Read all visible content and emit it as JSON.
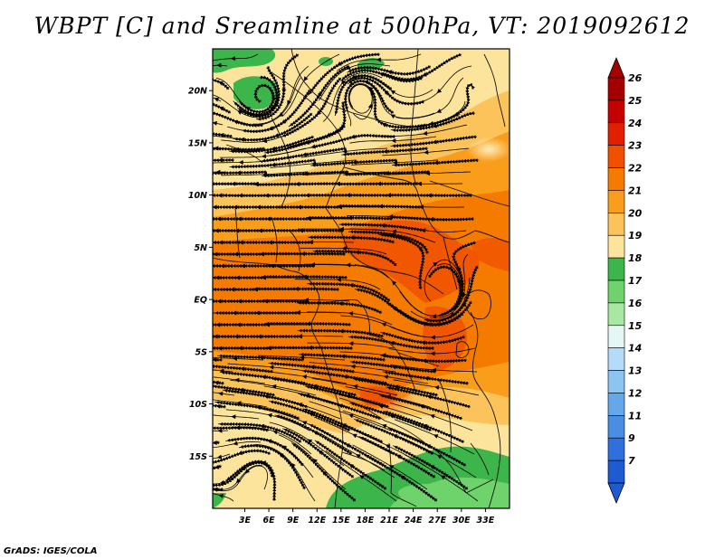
{
  "title": "WBPT [C] and Sreamline at 500hPa, VT: 2019092612",
  "credit": "GrADS: IGES/COLA",
  "map": {
    "lon_range": [
      -1,
      36
    ],
    "lat_range": [
      -20,
      24
    ],
    "lon_labels": [
      {
        "lon": 3,
        "text": "3E"
      },
      {
        "lon": 6,
        "text": "6E"
      },
      {
        "lon": 9,
        "text": "9E"
      },
      {
        "lon": 12,
        "text": "12E"
      },
      {
        "lon": 15,
        "text": "15E"
      },
      {
        "lon": 18,
        "text": "18E"
      },
      {
        "lon": 21,
        "text": "21E"
      },
      {
        "lon": 24,
        "text": "24E"
      },
      {
        "lon": 27,
        "text": "27E"
      },
      {
        "lon": 30,
        "text": "30E"
      },
      {
        "lon": 33,
        "text": "33E"
      }
    ],
    "lat_labels": [
      {
        "lat": 20,
        "text": "20N"
      },
      {
        "lat": 15,
        "text": "15N"
      },
      {
        "lat": 10,
        "text": "10N"
      },
      {
        "lat": 5,
        "text": "5N"
      },
      {
        "lat": 0,
        "text": "EQ"
      },
      {
        "lat": -5,
        "text": "5S"
      },
      {
        "lat": -10,
        "text": "10S"
      },
      {
        "lat": -15,
        "text": "15S"
      }
    ]
  },
  "colorbar": {
    "levels": [
      {
        "label": "26",
        "color": "#a50000"
      },
      {
        "label": "25",
        "color": "#c40000"
      },
      {
        "label": "24",
        "color": "#e02000"
      },
      {
        "label": "23",
        "color": "#f05000"
      },
      {
        "label": "22",
        "color": "#f57a00"
      },
      {
        "label": "21",
        "color": "#f99d1a"
      },
      {
        "label": "20",
        "color": "#fbc35a"
      },
      {
        "label": "19",
        "color": "#fde49c"
      },
      {
        "label": "18",
        "color": "#3cb54a"
      },
      {
        "label": "17",
        "color": "#6ed36a"
      },
      {
        "label": "16",
        "color": "#a8e8a0"
      },
      {
        "label": "15",
        "color": "#e4f7f4"
      },
      {
        "label": "14",
        "color": "#b4dcf8"
      },
      {
        "label": "13",
        "color": "#8cc4f2"
      },
      {
        "label": "12",
        "color": "#64a8ea"
      },
      {
        "label": "11",
        "color": "#4a8ee4"
      },
      {
        "label": "9",
        "color": "#2e70dc"
      },
      {
        "label": "7",
        "color": "#1e5ad0"
      }
    ],
    "top_color": "#a50000",
    "bottom_color": "#1e5ad0"
  }
}
